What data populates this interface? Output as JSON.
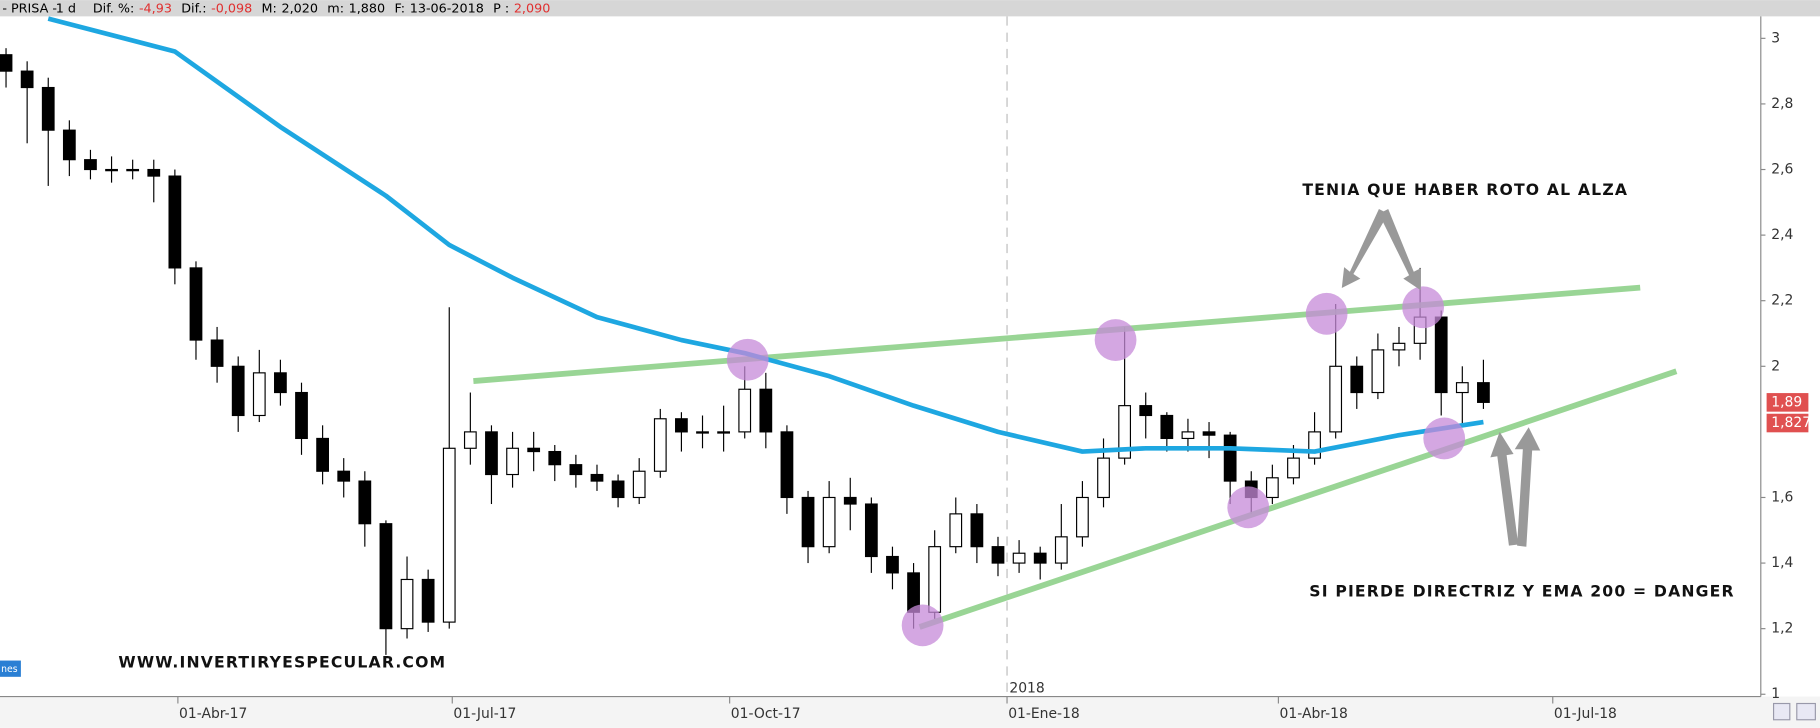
{
  "header": {
    "symbol": "- PRISA -",
    "interval": "1 d",
    "fields": [
      {
        "label": "Dif. %:",
        "value": "-4,93"
      },
      {
        "label": "Dif.:",
        "value": "-0,098"
      },
      {
        "label": "M:",
        "value": "2,020"
      },
      {
        "label": "m:",
        "value": "1,880"
      },
      {
        "label": "F:",
        "value": "13-06-2018"
      },
      {
        "label": "P :",
        "value": "2,090"
      }
    ]
  },
  "chart_data": {
    "type": "candlestick",
    "x": [
      "2017-02-03",
      "2017-02-10",
      "2017-02-17",
      "2017-02-24",
      "2017-03-03",
      "2017-03-10",
      "2017-03-17",
      "2017-03-24",
      "2017-03-31",
      "2017-04-07",
      "2017-04-14",
      "2017-04-21",
      "2017-04-28",
      "2017-05-05",
      "2017-05-12",
      "2017-05-19",
      "2017-05-26",
      "2017-06-02",
      "2017-06-09",
      "2017-06-16",
      "2017-06-23",
      "2017-06-30",
      "2017-07-07",
      "2017-07-14",
      "2017-07-21",
      "2017-07-28",
      "2017-08-04",
      "2017-08-11",
      "2017-08-18",
      "2017-08-25",
      "2017-09-01",
      "2017-09-08",
      "2017-09-15",
      "2017-09-22",
      "2017-09-29",
      "2017-10-06",
      "2017-10-13",
      "2017-10-20",
      "2017-10-27",
      "2017-11-03",
      "2017-11-10",
      "2017-11-17",
      "2017-11-24",
      "2017-12-01",
      "2017-12-08",
      "2017-12-15",
      "2017-12-22",
      "2017-12-29",
      "2018-01-05",
      "2018-01-12",
      "2018-01-19",
      "2018-01-26",
      "2018-02-02",
      "2018-02-09",
      "2018-02-16",
      "2018-02-23",
      "2018-03-02",
      "2018-03-09",
      "2018-03-16",
      "2018-03-23",
      "2018-03-30",
      "2018-04-06",
      "2018-04-13",
      "2018-04-20",
      "2018-04-27",
      "2018-05-04",
      "2018-05-11",
      "2018-05-18",
      "2018-05-25",
      "2018-06-01",
      "2018-06-08"
    ],
    "open": [
      2.95,
      2.9,
      2.85,
      2.72,
      2.63,
      2.6,
      2.6,
      2.6,
      2.58,
      2.3,
      2.08,
      2.0,
      1.85,
      1.98,
      1.92,
      1.78,
      1.68,
      1.65,
      1.52,
      1.2,
      1.35,
      1.22,
      1.75,
      1.8,
      1.67,
      1.75,
      1.74,
      1.7,
      1.67,
      1.65,
      1.6,
      1.68,
      1.84,
      1.8,
      1.8,
      1.8,
      1.93,
      1.8,
      1.6,
      1.45,
      1.6,
      1.58,
      1.42,
      1.37,
      1.25,
      1.45,
      1.55,
      1.45,
      1.4,
      1.43,
      1.4,
      1.48,
      1.6,
      1.72,
      1.88,
      1.85,
      1.78,
      1.8,
      1.79,
      1.65,
      1.6,
      1.66,
      1.72,
      1.8,
      2.0,
      1.92,
      2.05,
      2.07,
      2.15,
      1.92,
      1.95
    ],
    "high": [
      2.97,
      2.93,
      2.88,
      2.75,
      2.66,
      2.64,
      2.63,
      2.63,
      2.6,
      2.32,
      2.12,
      2.03,
      2.05,
      2.02,
      1.95,
      1.82,
      1.72,
      1.68,
      1.53,
      1.42,
      1.38,
      2.18,
      1.92,
      1.82,
      1.8,
      1.8,
      1.76,
      1.73,
      1.7,
      1.67,
      1.72,
      1.87,
      1.86,
      1.85,
      1.88,
      2.0,
      1.98,
      1.82,
      1.62,
      1.65,
      1.66,
      1.6,
      1.45,
      1.4,
      1.5,
      1.6,
      1.58,
      1.48,
      1.47,
      1.45,
      1.58,
      1.65,
      1.78,
      2.12,
      1.92,
      1.86,
      1.84,
      1.83,
      1.8,
      1.68,
      1.7,
      1.76,
      1.86,
      2.19,
      2.03,
      2.1,
      2.12,
      2.3,
      2.17,
      2.0,
      2.02
    ],
    "low": [
      2.85,
      2.68,
      2.55,
      2.58,
      2.57,
      2.56,
      2.57,
      2.5,
      2.25,
      2.02,
      1.95,
      1.8,
      1.83,
      1.88,
      1.73,
      1.64,
      1.6,
      1.45,
      1.12,
      1.17,
      1.19,
      1.2,
      1.7,
      1.58,
      1.63,
      1.68,
      1.65,
      1.63,
      1.62,
      1.57,
      1.58,
      1.66,
      1.74,
      1.75,
      1.74,
      1.78,
      1.75,
      1.55,
      1.4,
      1.43,
      1.5,
      1.37,
      1.32,
      1.2,
      1.23,
      1.43,
      1.4,
      1.36,
      1.37,
      1.35,
      1.38,
      1.45,
      1.57,
      1.7,
      1.78,
      1.74,
      1.74,
      1.72,
      1.58,
      1.55,
      1.58,
      1.64,
      1.7,
      1.78,
      1.87,
      1.9,
      2.0,
      2.02,
      1.85,
      1.82,
      1.87
    ],
    "close": [
      2.9,
      2.85,
      2.72,
      2.63,
      2.6,
      2.6,
      2.6,
      2.58,
      2.3,
      2.08,
      2.0,
      1.85,
      1.98,
      1.92,
      1.78,
      1.68,
      1.65,
      1.52,
      1.2,
      1.35,
      1.22,
      1.75,
      1.8,
      1.67,
      1.75,
      1.74,
      1.7,
      1.67,
      1.65,
      1.6,
      1.68,
      1.84,
      1.8,
      1.8,
      1.8,
      1.93,
      1.8,
      1.6,
      1.45,
      1.6,
      1.58,
      1.42,
      1.37,
      1.25,
      1.45,
      1.55,
      1.45,
      1.4,
      1.43,
      1.4,
      1.48,
      1.6,
      1.72,
      1.88,
      1.85,
      1.78,
      1.8,
      1.79,
      1.65,
      1.6,
      1.66,
      1.72,
      1.8,
      2.0,
      1.92,
      2.05,
      2.07,
      2.15,
      1.92,
      1.95,
      1.89
    ],
    "up_color": "#ffffff",
    "down_color": "#000000",
    "moving_average": {
      "color": "#1ea7e1",
      "x": [
        "2017-02-17",
        "2017-03-31",
        "2017-05-05",
        "2017-06-09",
        "2017-06-30",
        "2017-07-21",
        "2017-08-18",
        "2017-09-15",
        "2017-10-06",
        "2017-11-03",
        "2017-12-01",
        "2017-12-29",
        "2018-01-26",
        "2018-02-16",
        "2018-03-16",
        "2018-04-13",
        "2018-05-11",
        "2018-06-08"
      ],
      "values": [
        3.06,
        2.96,
        2.73,
        2.52,
        2.37,
        2.27,
        2.15,
        2.08,
        2.04,
        1.97,
        1.88,
        1.8,
        1.74,
        1.75,
        1.75,
        1.74,
        1.79,
        1.83
      ]
    },
    "trendlines": [
      {
        "color": "#8ed08a",
        "x": [
          "2017-07-08",
          "2018-07-30"
        ],
        "values": [
          1.955,
          2.24
        ]
      },
      {
        "color": "#8ed08a",
        "x": [
          "2017-12-03",
          "2018-08-11"
        ],
        "values": [
          1.205,
          1.985
        ]
      }
    ],
    "highlights": {
      "color": "#c58ad8",
      "x": [
        "2017-10-07",
        "2018-02-06",
        "2018-04-17",
        "2018-05-19",
        "2018-03-22",
        "2018-05-26",
        "2017-12-04"
      ],
      "values": [
        2.02,
        2.08,
        2.16,
        2.18,
        1.57,
        1.78,
        1.21
      ]
    },
    "price_labels": [
      {
        "value": 1.89,
        "label": "1,89"
      },
      {
        "value": 1.827,
        "label": "1,827"
      }
    ],
    "price_label_color": "#e05050",
    "xlim": [
      "2017-02-01",
      "2018-09-08"
    ],
    "xticks": [
      {
        "value": "2017-04-01",
        "label": "01-Abr-17"
      },
      {
        "value": "2017-07-01",
        "label": "01-Jul-17"
      },
      {
        "value": "2017-10-01",
        "label": "01-Oct-17"
      },
      {
        "value": "2018-01-01",
        "label": "01-Ene-18"
      },
      {
        "value": "2018-04-01",
        "label": "01-Abr-18"
      },
      {
        "value": "2018-07-01",
        "label": "01-Jul-18"
      }
    ],
    "year_marker": {
      "x": "2018-01-01",
      "label": "2018"
    },
    "ylim": [
      0.993,
      3.067
    ],
    "yticks": [
      1,
      {
        "value": 1.2,
        "label": "1,2"
      },
      {
        "value": 1.4,
        "label": "1,4"
      },
      {
        "value": 1.6,
        "label": "1,6"
      },
      2,
      {
        "value": 2.2,
        "label": "2,2"
      },
      {
        "value": 2.4,
        "label": "2,4"
      },
      {
        "value": 2.6,
        "label": "2,6"
      },
      {
        "value": 2.8,
        "label": "2,8"
      },
      3
    ],
    "annotations": [
      "TENIA QUE HABER ROTO AL ALZA",
      "SI PIERDE DIRECTRIZ Y EMA 200 = DANGER",
      "WWW.INVERTIRYESPECULAR.COM"
    ],
    "corner_tag": "nes"
  }
}
